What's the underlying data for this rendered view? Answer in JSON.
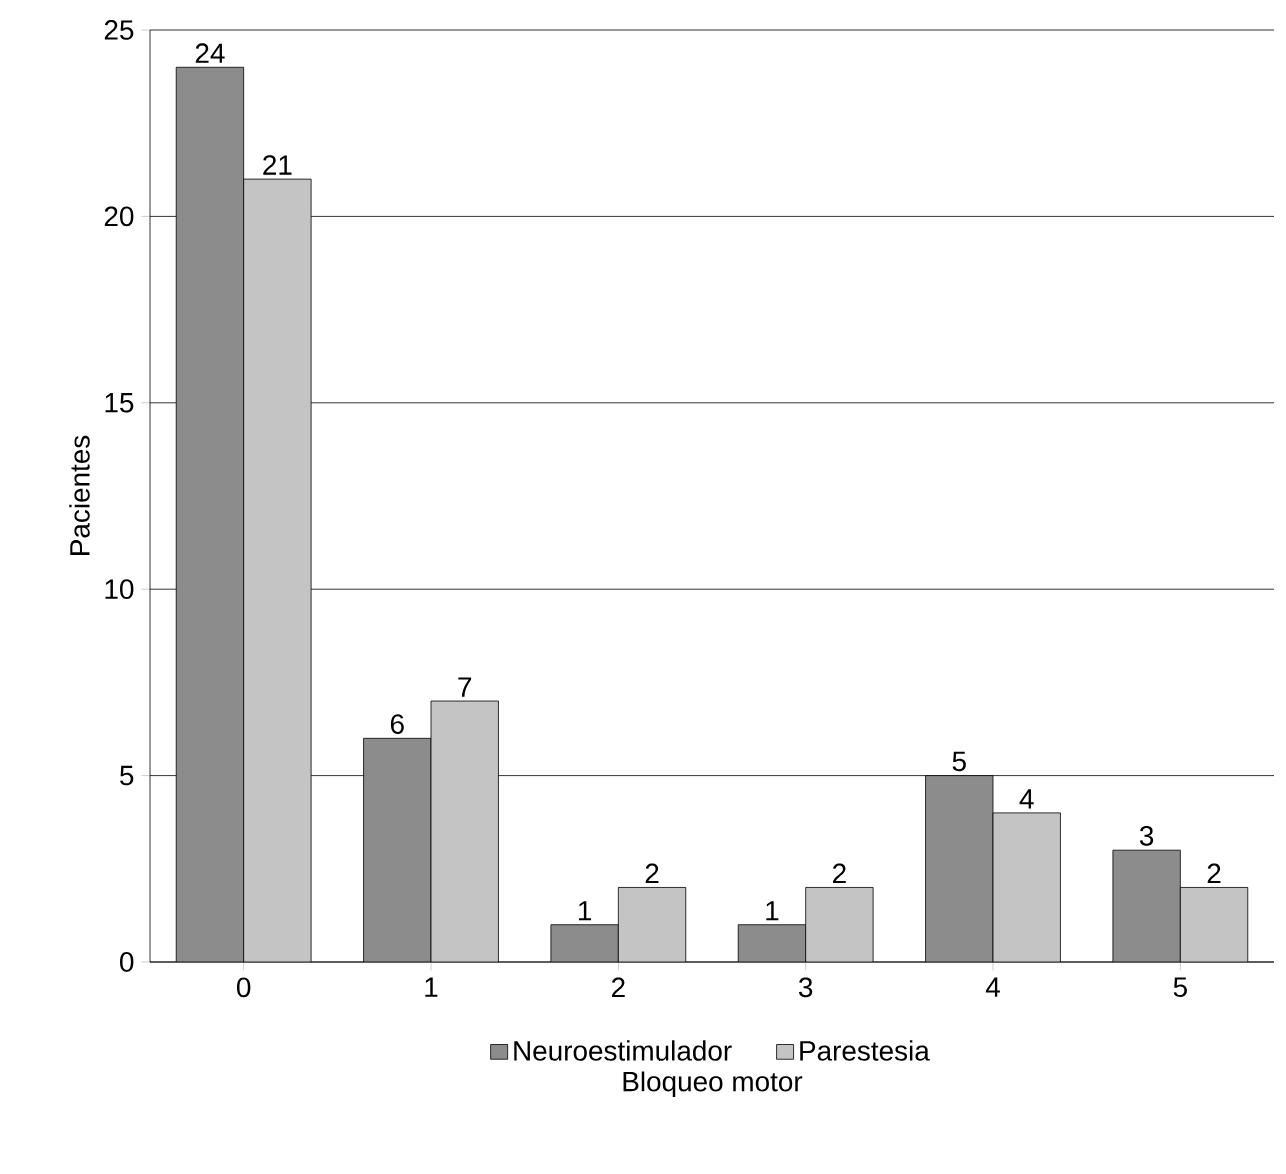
{
  "chart_data": {
    "type": "bar",
    "xlabel": "Bloqueo motor",
    "ylabel": "Pacientes",
    "categories": [
      "0",
      "1",
      "2",
      "3",
      "4",
      "5"
    ],
    "series": [
      {
        "name": "Neuroestimulador",
        "color": "#8c8c8c",
        "values": [
          24,
          6,
          1,
          1,
          5,
          3
        ]
      },
      {
        "name": "Parestesia",
        "color": "#c4c4c4",
        "values": [
          21,
          7,
          2,
          2,
          4,
          2
        ]
      }
    ],
    "ylim": [
      0,
      25
    ],
    "yticks": [
      0,
      5,
      10,
      15,
      20,
      25
    ],
    "grid": "y",
    "legend": "bottom",
    "data_labels": true
  }
}
